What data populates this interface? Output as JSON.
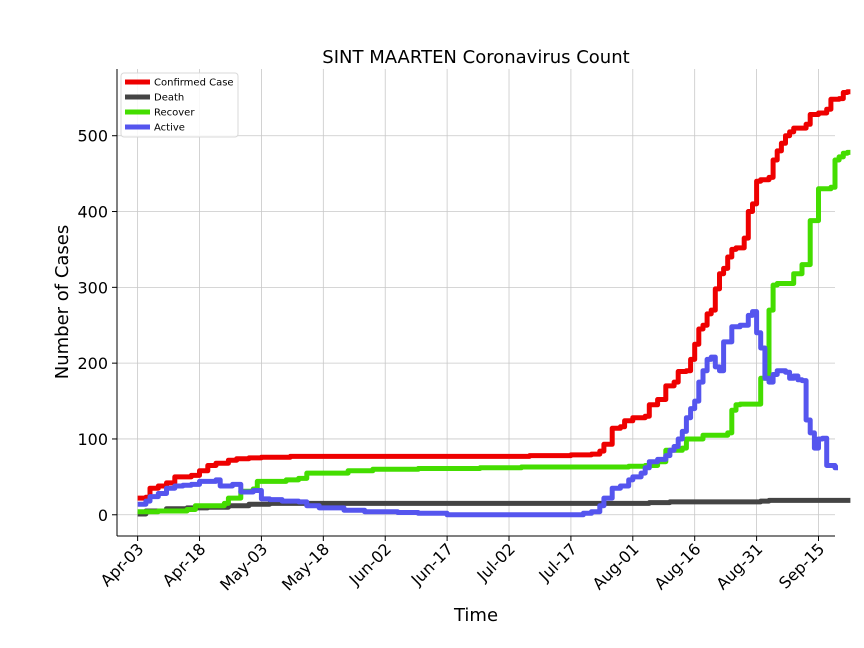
{
  "chart_data": {
    "type": "line",
    "title": "SINT MAARTEN Coronavirus Count",
    "xlabel": "Time",
    "ylabel": "Number of Cases",
    "x_ticks": [
      "Apr-03",
      "Apr-18",
      "May-03",
      "May-18",
      "Jun-02",
      "Jun-17",
      "Jul-02",
      "Jul-17",
      "Aug-01",
      "Aug-16",
      "Aug-31",
      "Sep-15"
    ],
    "xlim": [
      "2020-03-29",
      "2020-09-19"
    ],
    "ylim": [
      -28,
      588
    ],
    "y_ticks": [
      0,
      100,
      200,
      300,
      400,
      500
    ],
    "grid": true,
    "legend_position": "top-left",
    "series": [
      {
        "name": "Confirmed Case",
        "color": "#ee0000",
        "points": [
          [
            "2020-04-03",
            22
          ],
          [
            "2020-04-05",
            23
          ],
          [
            "2020-04-06",
            35
          ],
          [
            "2020-04-08",
            38
          ],
          [
            "2020-04-10",
            42
          ],
          [
            "2020-04-12",
            50
          ],
          [
            "2020-04-16",
            52
          ],
          [
            "2020-04-18",
            58
          ],
          [
            "2020-04-20",
            65
          ],
          [
            "2020-04-22",
            68
          ],
          [
            "2020-04-25",
            72
          ],
          [
            "2020-04-27",
            74
          ],
          [
            "2020-04-30",
            75
          ],
          [
            "2020-05-03",
            76
          ],
          [
            "2020-05-10",
            77
          ],
          [
            "2020-05-20",
            77
          ],
          [
            "2020-06-15",
            77
          ],
          [
            "2020-07-02",
            77
          ],
          [
            "2020-07-07",
            78
          ],
          [
            "2020-07-17",
            79
          ],
          [
            "2020-07-22",
            80
          ],
          [
            "2020-07-24",
            84
          ],
          [
            "2020-07-25",
            93
          ],
          [
            "2020-07-27",
            114
          ],
          [
            "2020-07-29",
            116
          ],
          [
            "2020-07-30",
            124
          ],
          [
            "2020-08-01",
            128
          ],
          [
            "2020-08-04",
            130
          ],
          [
            "2020-08-05",
            145
          ],
          [
            "2020-08-07",
            152
          ],
          [
            "2020-08-09",
            170
          ],
          [
            "2020-08-11",
            175
          ],
          [
            "2020-08-12",
            189
          ],
          [
            "2020-08-14",
            190
          ],
          [
            "2020-08-15",
            205
          ],
          [
            "2020-08-16",
            225
          ],
          [
            "2020-08-17",
            245
          ],
          [
            "2020-08-18",
            250
          ],
          [
            "2020-08-19",
            265
          ],
          [
            "2020-08-20",
            270
          ],
          [
            "2020-08-21",
            298
          ],
          [
            "2020-08-22",
            318
          ],
          [
            "2020-08-23",
            325
          ],
          [
            "2020-08-24",
            340
          ],
          [
            "2020-08-25",
            350
          ],
          [
            "2020-08-26",
            352
          ],
          [
            "2020-08-28",
            365
          ],
          [
            "2020-08-29",
            400
          ],
          [
            "2020-08-30",
            410
          ],
          [
            "2020-08-31",
            440
          ],
          [
            "2020-09-01",
            442
          ],
          [
            "2020-09-03",
            445
          ],
          [
            "2020-09-04",
            468
          ],
          [
            "2020-09-05",
            480
          ],
          [
            "2020-09-06",
            490
          ],
          [
            "2020-09-07",
            500
          ],
          [
            "2020-09-08",
            505
          ],
          [
            "2020-09-09",
            510
          ],
          [
            "2020-09-10",
            510
          ],
          [
            "2020-09-12",
            515
          ],
          [
            "2020-09-13",
            528
          ],
          [
            "2020-09-15",
            530
          ],
          [
            "2020-09-17",
            535
          ],
          [
            "2020-09-18",
            548
          ],
          [
            "2020-09-20",
            549
          ],
          [
            "2020-09-21",
            557
          ],
          [
            "2020-09-22",
            558
          ]
        ]
      },
      {
        "name": "Death",
        "color": "#444444",
        "points": [
          [
            "2020-04-03",
            1
          ],
          [
            "2020-04-05",
            5
          ],
          [
            "2020-04-10",
            8
          ],
          [
            "2020-04-15",
            9
          ],
          [
            "2020-04-20",
            10
          ],
          [
            "2020-04-25",
            12
          ],
          [
            "2020-04-30",
            14
          ],
          [
            "2020-05-05",
            15
          ],
          [
            "2020-05-20",
            15
          ],
          [
            "2020-06-15",
            15
          ],
          [
            "2020-07-15",
            15
          ],
          [
            "2020-08-05",
            16
          ],
          [
            "2020-08-10",
            17
          ],
          [
            "2020-08-20",
            17
          ],
          [
            "2020-09-01",
            18
          ],
          [
            "2020-09-03",
            19
          ],
          [
            "2020-09-15",
            19
          ],
          [
            "2020-09-22",
            19
          ]
        ]
      },
      {
        "name": "Recover",
        "color": "#44dd00",
        "points": [
          [
            "2020-04-03",
            4
          ],
          [
            "2020-04-08",
            5
          ],
          [
            "2020-04-15",
            7
          ],
          [
            "2020-04-17",
            12
          ],
          [
            "2020-04-24",
            15
          ],
          [
            "2020-04-25",
            22
          ],
          [
            "2020-04-28",
            31
          ],
          [
            "2020-05-01",
            34
          ],
          [
            "2020-05-02",
            44
          ],
          [
            "2020-05-09",
            46
          ],
          [
            "2020-05-12",
            48
          ],
          [
            "2020-05-14",
            55
          ],
          [
            "2020-05-24",
            58
          ],
          [
            "2020-05-30",
            60
          ],
          [
            "2020-06-10",
            61
          ],
          [
            "2020-06-25",
            62
          ],
          [
            "2020-07-05",
            63
          ],
          [
            "2020-07-31",
            64
          ],
          [
            "2020-08-04",
            65
          ],
          [
            "2020-08-07",
            70
          ],
          [
            "2020-08-09",
            85
          ],
          [
            "2020-08-13",
            88
          ],
          [
            "2020-08-14",
            100
          ],
          [
            "2020-08-18",
            105
          ],
          [
            "2020-08-24",
            108
          ],
          [
            "2020-08-25",
            138
          ],
          [
            "2020-08-26",
            145
          ],
          [
            "2020-08-27",
            146
          ],
          [
            "2020-09-01",
            180
          ],
          [
            "2020-09-03",
            270
          ],
          [
            "2020-09-04",
            303
          ],
          [
            "2020-09-05",
            305
          ],
          [
            "2020-09-09",
            318
          ],
          [
            "2020-09-11",
            330
          ],
          [
            "2020-09-13",
            388
          ],
          [
            "2020-09-15",
            430
          ],
          [
            "2020-09-18",
            432
          ],
          [
            "2020-09-19",
            468
          ],
          [
            "2020-09-20",
            472
          ],
          [
            "2020-09-21",
            477
          ],
          [
            "2020-09-22",
            478
          ]
        ]
      },
      {
        "name": "Active",
        "color": "#5555ee",
        "points": [
          [
            "2020-04-03",
            14
          ],
          [
            "2020-04-05",
            18
          ],
          [
            "2020-04-06",
            24
          ],
          [
            "2020-04-08",
            28
          ],
          [
            "2020-04-10",
            35
          ],
          [
            "2020-04-12",
            38
          ],
          [
            "2020-04-14",
            39
          ],
          [
            "2020-04-16",
            40
          ],
          [
            "2020-04-18",
            44
          ],
          [
            "2020-04-22",
            46
          ],
          [
            "2020-04-23",
            38
          ],
          [
            "2020-04-26",
            40
          ],
          [
            "2020-04-28",
            30
          ],
          [
            "2020-05-01",
            32
          ],
          [
            "2020-05-03",
            21
          ],
          [
            "2020-05-05",
            20
          ],
          [
            "2020-05-08",
            18
          ],
          [
            "2020-05-12",
            17
          ],
          [
            "2020-05-14",
            12
          ],
          [
            "2020-05-17",
            9
          ],
          [
            "2020-05-23",
            6
          ],
          [
            "2020-05-28",
            4
          ],
          [
            "2020-06-05",
            3
          ],
          [
            "2020-06-10",
            2
          ],
          [
            "2020-06-17",
            0
          ],
          [
            "2020-07-02",
            0
          ],
          [
            "2020-07-17",
            0
          ],
          [
            "2020-07-20",
            2
          ],
          [
            "2020-07-22",
            4
          ],
          [
            "2020-07-24",
            12
          ],
          [
            "2020-07-25",
            22
          ],
          [
            "2020-07-27",
            35
          ],
          [
            "2020-07-29",
            38
          ],
          [
            "2020-07-31",
            46
          ],
          [
            "2020-08-01",
            50
          ],
          [
            "2020-08-03",
            55
          ],
          [
            "2020-08-04",
            62
          ],
          [
            "2020-08-05",
            70
          ],
          [
            "2020-08-07",
            73
          ],
          [
            "2020-08-09",
            78
          ],
          [
            "2020-08-10",
            85
          ],
          [
            "2020-08-11",
            90
          ],
          [
            "2020-08-12",
            100
          ],
          [
            "2020-08-13",
            110
          ],
          [
            "2020-08-14",
            128
          ],
          [
            "2020-08-15",
            140
          ],
          [
            "2020-08-16",
            150
          ],
          [
            "2020-08-17",
            175
          ],
          [
            "2020-08-18",
            190
          ],
          [
            "2020-08-19",
            205
          ],
          [
            "2020-08-20",
            208
          ],
          [
            "2020-08-21",
            195
          ],
          [
            "2020-08-22",
            190
          ],
          [
            "2020-08-23",
            228
          ],
          [
            "2020-08-25",
            248
          ],
          [
            "2020-08-27",
            250
          ],
          [
            "2020-08-29",
            263
          ],
          [
            "2020-08-30",
            268
          ],
          [
            "2020-08-31",
            240
          ],
          [
            "2020-09-01",
            220
          ],
          [
            "2020-09-02",
            180
          ],
          [
            "2020-09-03",
            175
          ],
          [
            "2020-09-04",
            185
          ],
          [
            "2020-09-05",
            190
          ],
          [
            "2020-09-07",
            188
          ],
          [
            "2020-09-08",
            180
          ],
          [
            "2020-09-09",
            183
          ],
          [
            "2020-09-10",
            178
          ],
          [
            "2020-09-11",
            177
          ],
          [
            "2020-09-12",
            125
          ],
          [
            "2020-09-13",
            108
          ],
          [
            "2020-09-14",
            88
          ],
          [
            "2020-09-15",
            100
          ],
          [
            "2020-09-16",
            101
          ],
          [
            "2020-09-17",
            65
          ],
          [
            "2020-09-19",
            62
          ]
        ]
      }
    ]
  }
}
